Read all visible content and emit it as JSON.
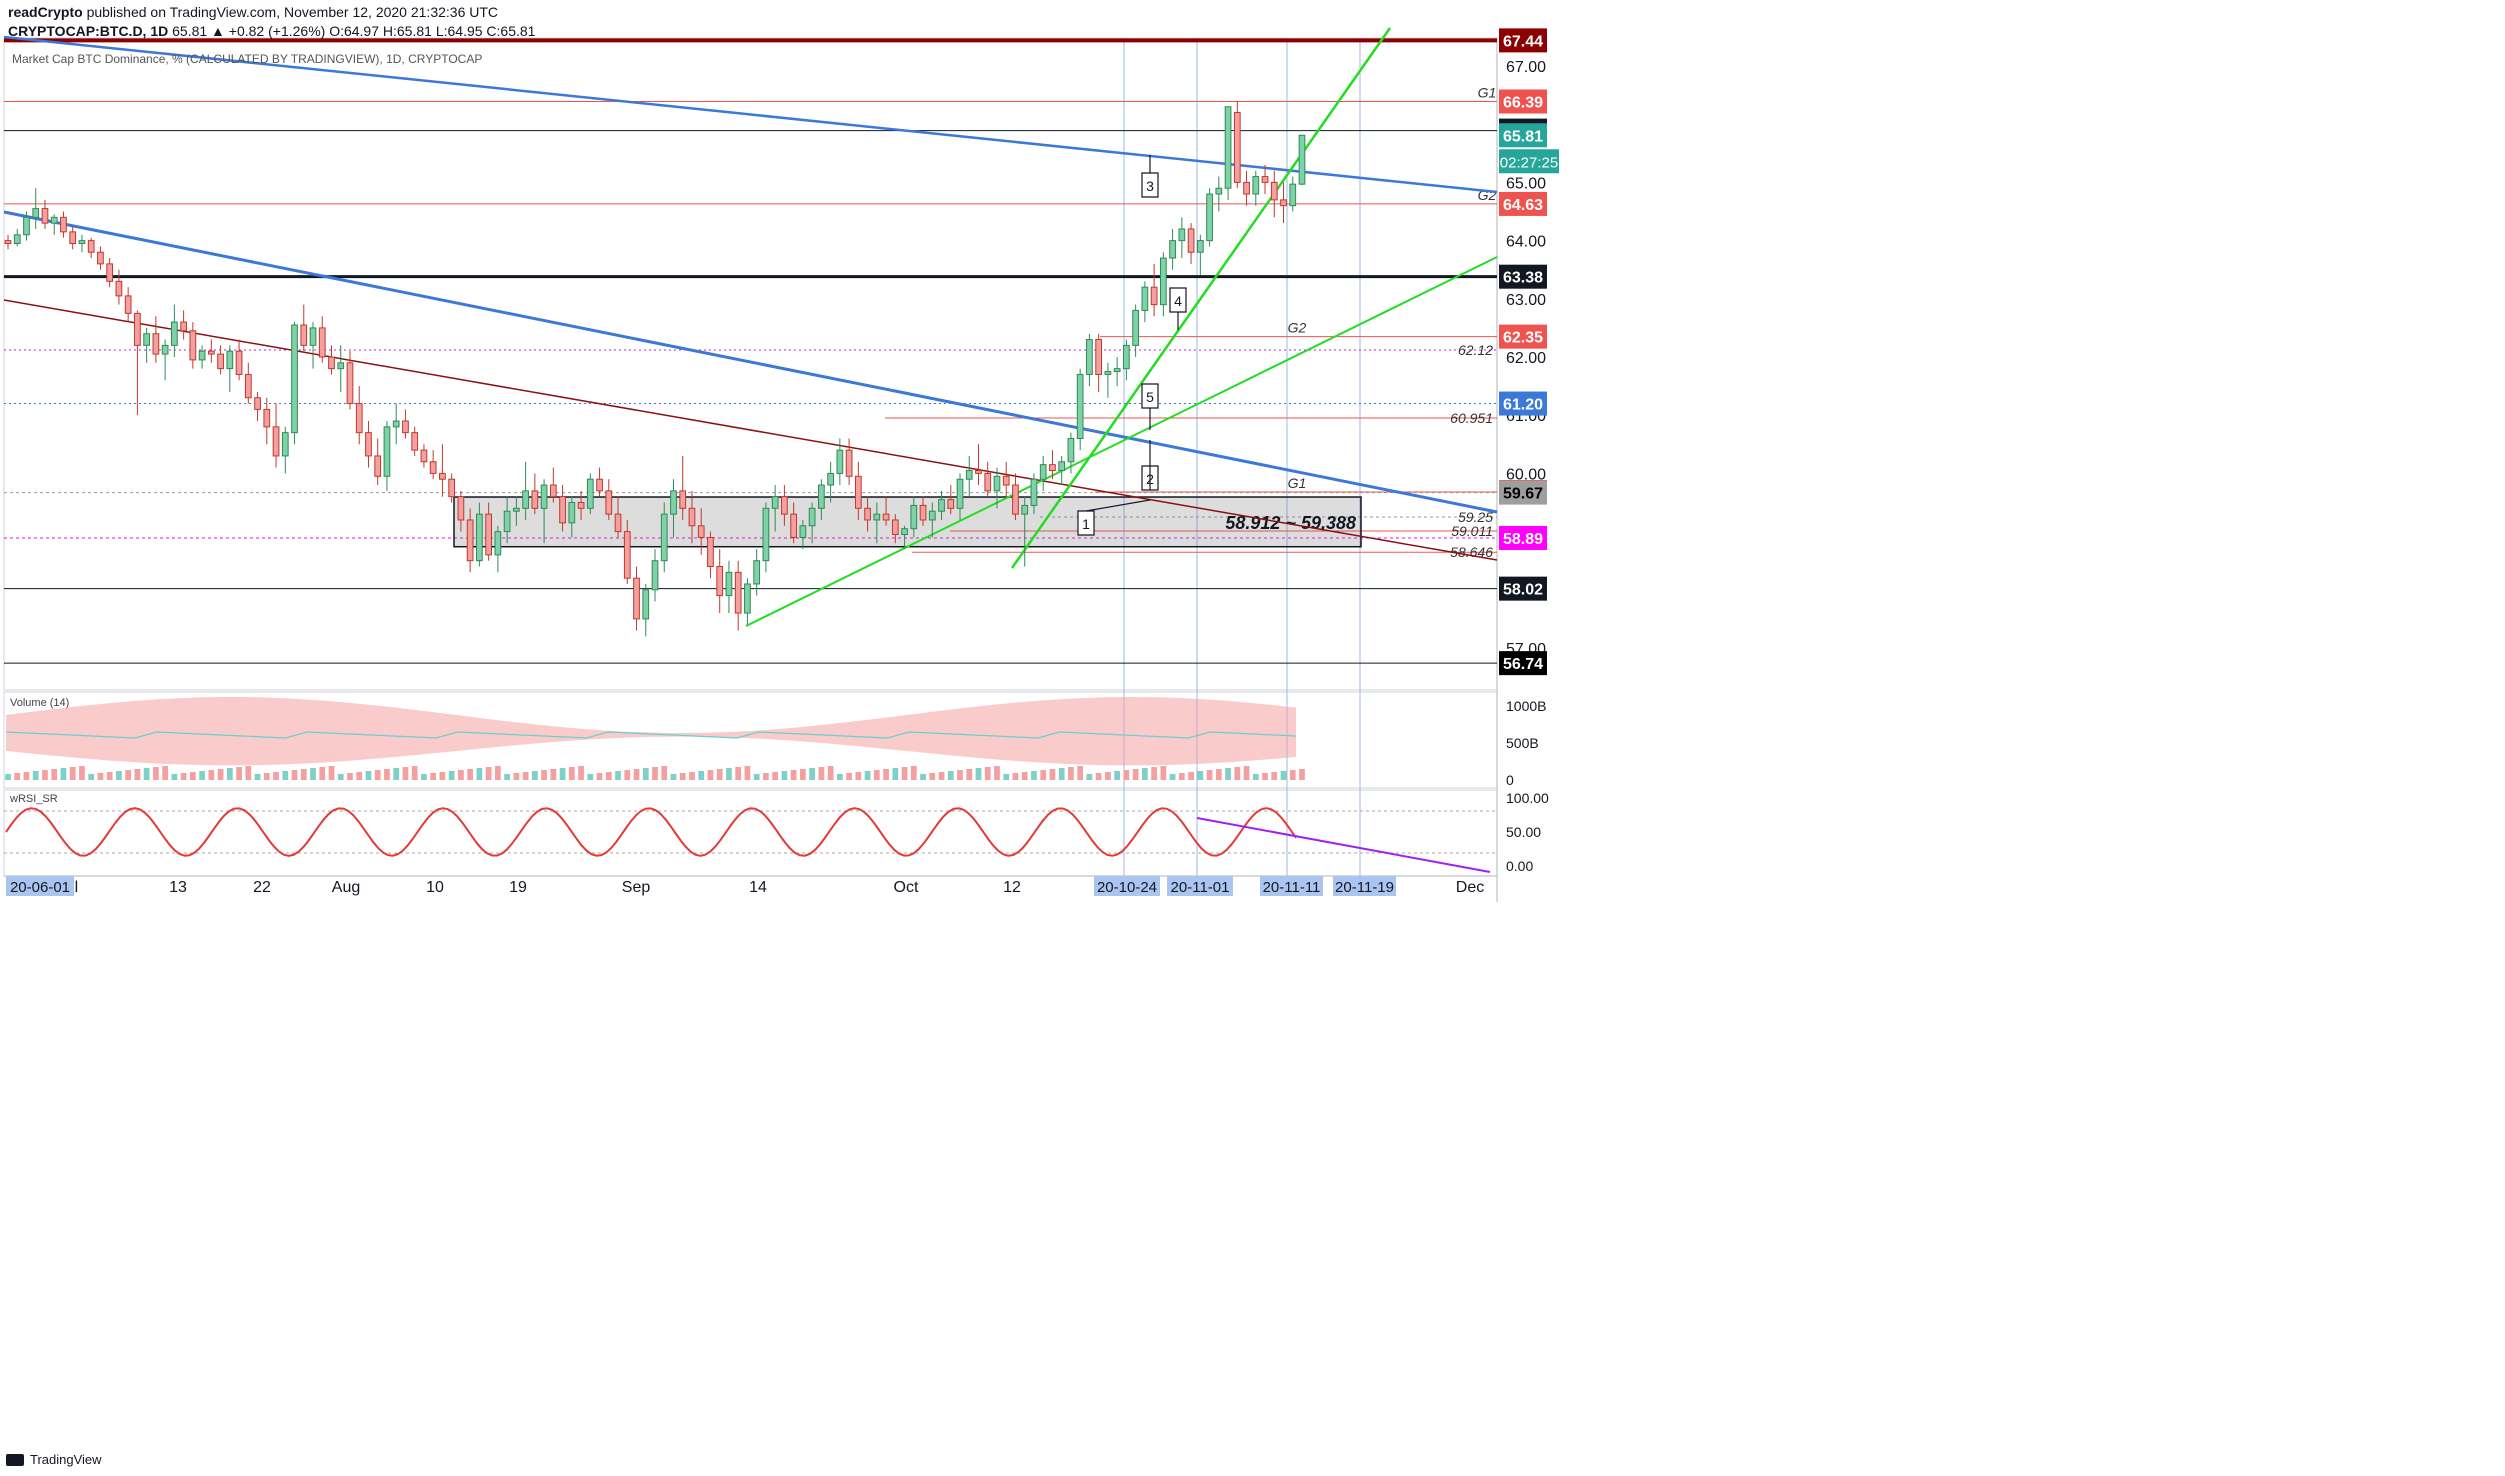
{
  "header": {
    "publisher": "readCrypto",
    "published_text": "published on TradingView.com, November 12, 2020 21:32:36 UTC",
    "symbol": "CRYPTOCAP:BTC.D, 1D",
    "ohlc": "65.81 ▲ +0.82 (+1.26%) O:64.97 H:65.81 L:64.95 C:65.81",
    "series_title": "Market Cap BTC Dominance, % (CALCULATED BY TRADINGVIEW), 1D, CRYPTOCAP"
  },
  "footer": {
    "brand": "TradingView"
  },
  "colors": {
    "up": "#26a69a",
    "down": "#ef5350",
    "blue_trend": "#3c78d8",
    "darkred_trend": "#8b1010",
    "green_trend": "#22dd22",
    "purple_trend": "#a020f0",
    "axis_text": "#131722"
  },
  "chart_data": [
    {
      "type": "candlestick",
      "title": "Market Cap BTC Dominance, % (CALCULATED BY TRADINGVIEW), 1D, CRYPTOCAP",
      "ylim": [
        56.4,
        67.9
      ],
      "y_ticks": [
        "57.00",
        "58.00",
        "59.00",
        "60.00",
        "61.00",
        "62.00",
        "63.00",
        "64.00",
        "65.00",
        "66.00",
        "67.00"
      ],
      "x_ticks": [
        "Jul",
        "13",
        "22",
        "Aug",
        "10",
        "19",
        "Sep",
        "14",
        "Oct",
        "12",
        "Dec"
      ],
      "x_highlight_labels": [
        "20-06-01",
        "20-10-24",
        "20-11-01",
        "20-11-11",
        "20-11-19"
      ],
      "candles": [
        [
          64.0,
          64.1,
          63.85,
          63.95
        ],
        [
          63.95,
          64.2,
          63.9,
          64.1
        ],
        [
          64.1,
          64.5,
          64.0,
          64.4
        ],
        [
          64.4,
          64.9,
          64.2,
          64.55
        ],
        [
          64.55,
          64.7,
          64.2,
          64.3
        ],
        [
          64.3,
          64.45,
          64.1,
          64.4
        ],
        [
          64.4,
          64.5,
          64.05,
          64.15
        ],
        [
          64.15,
          64.25,
          63.85,
          63.95
        ],
        [
          63.95,
          64.1,
          63.8,
          64.0
        ],
        [
          64.0,
          64.05,
          63.7,
          63.8
        ],
        [
          63.8,
          63.9,
          63.5,
          63.6
        ],
        [
          63.6,
          63.7,
          63.2,
          63.3
        ],
        [
          63.3,
          63.5,
          62.9,
          63.05
        ],
        [
          63.05,
          63.2,
          62.6,
          62.75
        ],
        [
          62.75,
          62.8,
          61.0,
          62.2
        ],
        [
          62.2,
          62.5,
          61.9,
          62.4
        ],
        [
          62.4,
          62.7,
          61.9,
          62.05
        ],
        [
          62.05,
          62.3,
          61.6,
          62.2
        ],
        [
          62.2,
          62.9,
          62.0,
          62.6
        ],
        [
          62.6,
          62.8,
          62.3,
          62.45
        ],
        [
          62.45,
          62.6,
          61.8,
          61.95
        ],
        [
          61.95,
          62.2,
          61.8,
          62.1
        ],
        [
          62.1,
          62.3,
          61.9,
          62.05
        ],
        [
          62.05,
          62.2,
          61.7,
          61.8
        ],
        [
          61.8,
          62.2,
          61.4,
          62.1
        ],
        [
          62.1,
          62.3,
          61.6,
          61.7
        ],
        [
          61.7,
          61.9,
          61.2,
          61.3
        ],
        [
          61.3,
          61.4,
          60.9,
          61.1
        ],
        [
          61.1,
          61.3,
          60.5,
          60.8
        ],
        [
          60.8,
          61.2,
          60.1,
          60.3
        ],
        [
          60.3,
          60.8,
          60.0,
          60.7
        ],
        [
          60.7,
          62.6,
          60.5,
          62.55
        ],
        [
          62.55,
          62.9,
          62.1,
          62.2
        ],
        [
          62.2,
          62.6,
          61.8,
          62.5
        ],
        [
          62.5,
          62.7,
          61.9,
          62.0
        ],
        [
          62.0,
          62.2,
          61.7,
          61.8
        ],
        [
          61.8,
          62.2,
          61.4,
          61.9
        ],
        [
          61.9,
          62.1,
          61.1,
          61.2
        ],
        [
          61.2,
          61.5,
          60.5,
          60.7
        ],
        [
          60.7,
          60.9,
          60.1,
          60.3
        ],
        [
          60.3,
          60.6,
          59.8,
          59.95
        ],
        [
          59.95,
          60.9,
          59.7,
          60.8
        ],
        [
          60.8,
          61.2,
          60.5,
          60.9
        ],
        [
          60.9,
          61.1,
          60.6,
          60.7
        ],
        [
          60.7,
          60.8,
          60.3,
          60.4
        ],
        [
          60.4,
          60.5,
          60.1,
          60.2
        ],
        [
          60.2,
          60.4,
          59.9,
          60.0
        ],
        [
          60.0,
          60.5,
          59.6,
          59.9
        ],
        [
          59.9,
          60.0,
          59.5,
          59.6
        ],
        [
          59.6,
          59.7,
          59.0,
          59.2
        ],
        [
          59.2,
          59.4,
          58.3,
          58.5
        ],
        [
          58.5,
          59.5,
          58.4,
          59.3
        ],
        [
          59.3,
          59.5,
          58.5,
          58.6
        ],
        [
          58.6,
          59.1,
          58.3,
          59.0
        ],
        [
          59.0,
          59.6,
          58.8,
          59.35
        ],
        [
          59.35,
          59.6,
          59.1,
          59.4
        ],
        [
          59.4,
          60.2,
          59.2,
          59.7
        ],
        [
          59.7,
          60.0,
          59.3,
          59.4
        ],
        [
          59.4,
          59.9,
          58.8,
          59.8
        ],
        [
          59.8,
          60.1,
          59.5,
          59.6
        ],
        [
          59.6,
          59.8,
          59.0,
          59.15
        ],
        [
          59.15,
          59.6,
          58.9,
          59.5
        ],
        [
          59.5,
          59.7,
          59.2,
          59.4
        ],
        [
          59.4,
          60.0,
          59.3,
          59.9
        ],
        [
          59.9,
          60.1,
          59.6,
          59.7
        ],
        [
          59.7,
          59.9,
          59.2,
          59.3
        ],
        [
          59.3,
          59.6,
          58.9,
          59.0
        ],
        [
          59.0,
          59.2,
          58.1,
          58.2
        ],
        [
          58.2,
          58.4,
          57.3,
          57.5
        ],
        [
          57.5,
          58.1,
          57.2,
          58.0
        ],
        [
          58.0,
          58.7,
          57.8,
          58.5
        ],
        [
          58.5,
          59.5,
          58.3,
          59.3
        ],
        [
          59.3,
          59.9,
          58.9,
          59.7
        ],
        [
          59.7,
          60.3,
          59.2,
          59.4
        ],
        [
          59.4,
          59.7,
          58.8,
          59.1
        ],
        [
          59.1,
          59.4,
          58.6,
          58.9
        ],
        [
          58.9,
          59.0,
          58.2,
          58.4
        ],
        [
          58.4,
          58.7,
          57.6,
          57.9
        ],
        [
          57.9,
          58.5,
          57.6,
          58.3
        ],
        [
          58.3,
          58.5,
          57.3,
          57.6
        ],
        [
          57.6,
          58.2,
          57.4,
          58.1
        ],
        [
          58.1,
          58.7,
          57.9,
          58.5
        ],
        [
          58.5,
          59.5,
          58.3,
          59.4
        ],
        [
          59.4,
          59.8,
          59.0,
          59.6
        ],
        [
          59.6,
          59.8,
          59.1,
          59.3
        ],
        [
          59.3,
          59.5,
          58.8,
          58.9
        ],
        [
          58.9,
          59.2,
          58.7,
          59.1
        ],
        [
          59.1,
          59.5,
          58.8,
          59.4
        ],
        [
          59.4,
          59.9,
          59.2,
          59.8
        ],
        [
          59.8,
          60.2,
          59.5,
          60.0
        ],
        [
          60.0,
          60.6,
          59.8,
          60.4
        ],
        [
          60.4,
          60.6,
          59.8,
          59.95
        ],
        [
          59.95,
          60.2,
          59.2,
          59.4
        ],
        [
          59.4,
          59.6,
          59.0,
          59.2
        ],
        [
          59.2,
          59.5,
          58.8,
          59.3
        ],
        [
          59.3,
          59.6,
          59.1,
          59.2
        ],
        [
          59.2,
          59.3,
          58.8,
          58.95
        ],
        [
          58.95,
          59.1,
          58.7,
          59.05
        ],
        [
          59.05,
          59.6,
          58.9,
          59.45
        ],
        [
          59.45,
          59.6,
          59.1,
          59.2
        ],
        [
          59.2,
          59.5,
          58.9,
          59.35
        ],
        [
          59.35,
          59.7,
          59.2,
          59.55
        ],
        [
          59.55,
          59.8,
          59.3,
          59.4
        ],
        [
          59.4,
          60.0,
          59.2,
          59.9
        ],
        [
          59.9,
          60.3,
          59.6,
          60.05
        ],
        [
          60.05,
          60.5,
          59.8,
          60.0
        ],
        [
          60.0,
          60.2,
          59.6,
          59.7
        ],
        [
          59.7,
          60.1,
          59.4,
          59.95
        ],
        [
          59.95,
          60.2,
          59.6,
          59.8
        ],
        [
          59.8,
          60.0,
          59.2,
          59.3
        ],
        [
          59.3,
          59.6,
          58.4,
          59.45
        ],
        [
          59.45,
          60.0,
          59.3,
          59.9
        ],
        [
          59.9,
          60.3,
          59.7,
          60.15
        ],
        [
          60.15,
          60.4,
          59.9,
          60.05
        ],
        [
          60.05,
          60.3,
          59.8,
          60.2
        ],
        [
          60.2,
          60.7,
          60.0,
          60.6
        ],
        [
          60.6,
          61.8,
          60.4,
          61.7
        ],
        [
          61.7,
          62.4,
          61.5,
          62.3
        ],
        [
          62.3,
          62.4,
          61.4,
          61.7
        ],
        [
          61.7,
          61.9,
          61.3,
          61.75
        ],
        [
          61.75,
          62.0,
          61.5,
          61.8
        ],
        [
          61.8,
          62.3,
          61.6,
          62.2
        ],
        [
          62.2,
          62.9,
          62.0,
          62.8
        ],
        [
          62.8,
          63.3,
          62.6,
          63.2
        ],
        [
          63.2,
          63.6,
          62.7,
          62.9
        ],
        [
          62.9,
          63.8,
          62.7,
          63.7
        ],
        [
          63.7,
          64.2,
          63.5,
          64.0
        ],
        [
          64.0,
          64.4,
          63.7,
          64.2
        ],
        [
          64.2,
          64.3,
          63.6,
          63.8
        ],
        [
          63.8,
          64.1,
          63.4,
          64.0
        ],
        [
          64.0,
          64.9,
          63.9,
          64.8
        ],
        [
          64.8,
          65.1,
          64.5,
          64.9
        ],
        [
          64.9,
          66.3,
          64.7,
          66.3
        ],
        [
          66.2,
          66.4,
          64.9,
          65.0
        ],
        [
          65.0,
          65.2,
          64.6,
          64.8
        ],
        [
          64.8,
          65.2,
          64.6,
          65.1
        ],
        [
          65.1,
          65.3,
          64.8,
          65.0
        ],
        [
          65.0,
          65.2,
          64.4,
          64.7
        ],
        [
          64.7,
          65.0,
          64.3,
          64.6
        ],
        [
          64.6,
          65.1,
          64.5,
          64.97
        ],
        [
          64.97,
          65.81,
          64.95,
          65.81
        ]
      ],
      "horizontal_levels": [
        {
          "value": 67.44,
          "label": "67.44",
          "tag": ""
        },
        {
          "value": 66.39,
          "label": "66.39",
          "tag": "G1"
        },
        {
          "value": 65.89,
          "label": "65.89",
          "tag": ""
        },
        {
          "value": 65.81,
          "label": "65.81",
          "tag": ""
        },
        {
          "value": 64.63,
          "label": "64.63",
          "tag": "G2"
        },
        {
          "value": 63.38,
          "label": "63.38",
          "tag": ""
        },
        {
          "value": 62.35,
          "label": "62.35",
          "tag": "G2"
        },
        {
          "value": 62.12,
          "label": "62.12",
          "tag": ""
        },
        {
          "value": 61.2,
          "label": "61.20",
          "tag": ""
        },
        {
          "value": 60.951,
          "label": "60.951",
          "tag": ""
        },
        {
          "value": 59.68,
          "label": "59.68",
          "tag": "G1"
        },
        {
          "value": 59.67,
          "label": "59.67",
          "tag": ""
        },
        {
          "value": 59.25,
          "label": "59.25",
          "tag": ""
        },
        {
          "value": 59.011,
          "label": "59.011",
          "tag": ""
        },
        {
          "value": 58.89,
          "label": "58.89",
          "tag": ""
        },
        {
          "value": 58.646,
          "label": "58.646",
          "tag": ""
        },
        {
          "value": 58.02,
          "label": "58.02",
          "tag": ""
        },
        {
          "value": 56.74,
          "label": "56.74",
          "tag": ""
        }
      ],
      "countdown": "02:27:25",
      "zone": {
        "low": 58.912,
        "high": 59.388,
        "label": "58.912 ~ 59.388"
      },
      "callouts": [
        "1",
        "2",
        "3",
        "4",
        "5"
      ]
    },
    {
      "type": "area",
      "title": "Volume (14)",
      "y_ticks": [
        "1000B",
        "500B",
        "0"
      ]
    },
    {
      "type": "line",
      "title": "wRSI_SR",
      "ylim": [
        0,
        100
      ],
      "y_ticks": [
        "100.00",
        "50.00",
        "0.00"
      ]
    }
  ]
}
